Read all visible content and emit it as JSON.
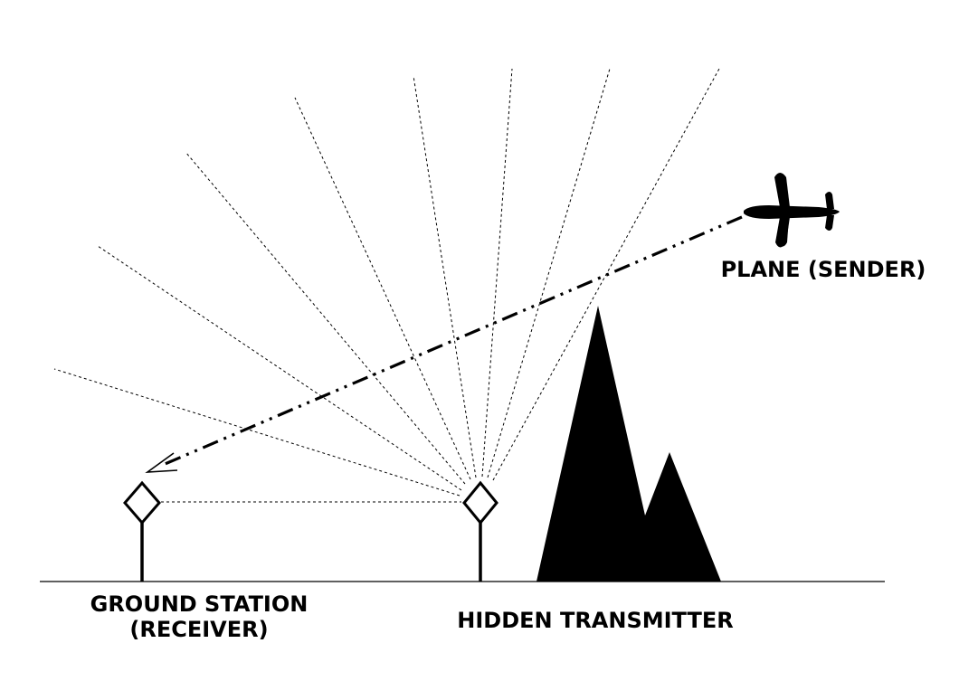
{
  "labels": {
    "plane": "PLANE (SENDER)",
    "ground_line1": "GROUND STATION",
    "ground_line2": "(RECEIVER)",
    "hidden": "HIDDEN TRANSMITTER"
  },
  "icons": {
    "plane": "airplane-icon",
    "ground_station": "antenna-diamond-icon",
    "transmitter": "antenna-diamond-icon",
    "mountain": "mountain-icon"
  },
  "colors": {
    "ink": "#000000",
    "background": "#ffffff"
  }
}
